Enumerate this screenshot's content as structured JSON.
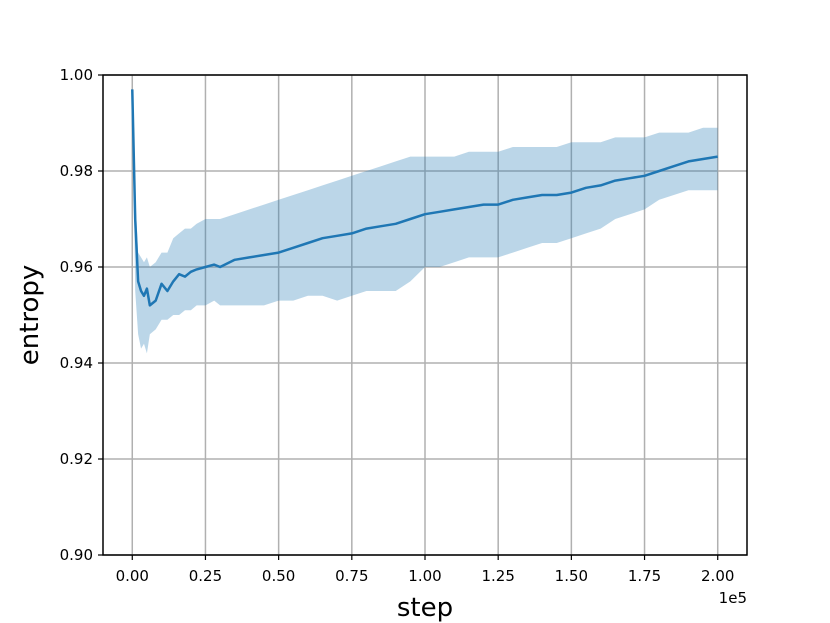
{
  "chart_data": {
    "type": "line",
    "xlabel": "step",
    "ylabel": "entropy",
    "x_offset_label": "1e5",
    "xlim": [
      -0.1,
      2.1
    ],
    "ylim": [
      0.9,
      1.0
    ],
    "grid": true,
    "x_ticks": [
      0.0,
      0.25,
      0.5,
      0.75,
      1.0,
      1.25,
      1.5,
      1.75,
      2.0
    ],
    "x_tick_labels": [
      "0.00",
      "0.25",
      "0.50",
      "0.75",
      "1.00",
      "1.25",
      "1.50",
      "1.75",
      "2.00"
    ],
    "y_ticks": [
      0.9,
      0.92,
      0.94,
      0.96,
      0.98,
      1.0
    ],
    "y_tick_labels": [
      "0.90",
      "0.92",
      "0.94",
      "0.96",
      "0.98",
      "1.00"
    ],
    "colors": {
      "line": "#1f77b4",
      "band": "#1f77b4",
      "band_opacity": 0.3
    },
    "series": [
      {
        "x": [
          0.0,
          0.01,
          0.02,
          0.03,
          0.04,
          0.05,
          0.06,
          0.08,
          0.1,
          0.12,
          0.14,
          0.16,
          0.18,
          0.2,
          0.22,
          0.25,
          0.28,
          0.3,
          0.35,
          0.4,
          0.45,
          0.5,
          0.55,
          0.6,
          0.65,
          0.7,
          0.75,
          0.8,
          0.85,
          0.9,
          0.95,
          1.0,
          1.05,
          1.1,
          1.15,
          1.2,
          1.25,
          1.3,
          1.35,
          1.4,
          1.45,
          1.5,
          1.55,
          1.6,
          1.65,
          1.7,
          1.75,
          1.8,
          1.85,
          1.9,
          1.95,
          2.0
        ],
        "y": [
          0.997,
          0.97,
          0.957,
          0.955,
          0.954,
          0.9555,
          0.952,
          0.953,
          0.9565,
          0.955,
          0.957,
          0.9585,
          0.958,
          0.959,
          0.9595,
          0.96,
          0.9605,
          0.96,
          0.9615,
          0.962,
          0.9625,
          0.963,
          0.964,
          0.965,
          0.966,
          0.9665,
          0.967,
          0.968,
          0.9685,
          0.969,
          0.97,
          0.971,
          0.9715,
          0.972,
          0.9725,
          0.973,
          0.973,
          0.974,
          0.9745,
          0.975,
          0.975,
          0.9755,
          0.9765,
          0.977,
          0.978,
          0.9785,
          0.979,
          0.98,
          0.981,
          0.982,
          0.9825,
          0.983
        ],
        "lower": [
          0.997,
          0.955,
          0.946,
          0.943,
          0.944,
          0.942,
          0.946,
          0.947,
          0.949,
          0.949,
          0.95,
          0.95,
          0.951,
          0.951,
          0.952,
          0.952,
          0.953,
          0.952,
          0.952,
          0.952,
          0.952,
          0.953,
          0.953,
          0.954,
          0.954,
          0.953,
          0.954,
          0.955,
          0.955,
          0.955,
          0.957,
          0.96,
          0.96,
          0.961,
          0.962,
          0.962,
          0.962,
          0.963,
          0.964,
          0.965,
          0.965,
          0.966,
          0.967,
          0.968,
          0.97,
          0.971,
          0.972,
          0.974,
          0.975,
          0.976,
          0.976,
          0.976
        ],
        "upper": [
          0.997,
          0.975,
          0.963,
          0.962,
          0.961,
          0.962,
          0.96,
          0.961,
          0.963,
          0.963,
          0.966,
          0.967,
          0.968,
          0.968,
          0.969,
          0.97,
          0.97,
          0.97,
          0.971,
          0.972,
          0.973,
          0.974,
          0.975,
          0.976,
          0.977,
          0.978,
          0.979,
          0.98,
          0.981,
          0.982,
          0.983,
          0.983,
          0.983,
          0.983,
          0.984,
          0.984,
          0.984,
          0.985,
          0.985,
          0.985,
          0.985,
          0.986,
          0.986,
          0.986,
          0.987,
          0.987,
          0.987,
          0.988,
          0.988,
          0.988,
          0.989,
          0.989
        ]
      }
    ]
  }
}
